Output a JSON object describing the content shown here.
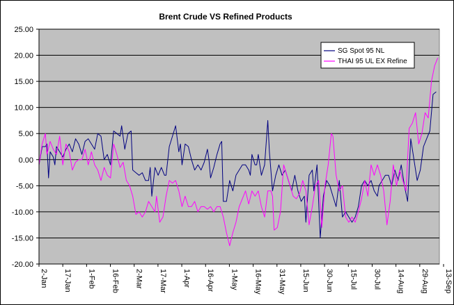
{
  "chart_data": {
    "type": "line",
    "title": "Brent Crude VS Refined Products",
    "xlabel": "",
    "ylabel": "",
    "ylim": [
      -20,
      25
    ],
    "y_ticks": [
      "25.00",
      "20.00",
      "15.00",
      "10.00",
      "5.00",
      "0.00",
      "-5.00",
      "-10.00",
      "-15.00",
      "-20.00"
    ],
    "x_tick_labels": [
      "2-Jan",
      "17-Jan",
      "1-Feb",
      "16-Feb",
      "2-Mar",
      "17-Mar",
      "1-Apr",
      "16-Apr",
      "1-May",
      "16-May",
      "31-May",
      "15-Jun",
      "30-Jun",
      "15-Jul",
      "30-Jul",
      "14-Aug",
      "29-Aug",
      "13-Sep"
    ],
    "grid": "horizontal",
    "plot_background": "#C0C0C0",
    "legend_position": "top-right",
    "series": [
      {
        "name": "SG Spot 95 NL",
        "color": "#000080",
        "points": [
          [
            0,
            -1
          ],
          [
            2,
            2.5
          ],
          [
            4,
            2.5
          ],
          [
            5,
            3
          ],
          [
            6,
            -3.5
          ],
          [
            7,
            1.5
          ],
          [
            9,
            0.5
          ],
          [
            10,
            -1
          ],
          [
            11,
            2.5
          ],
          [
            13,
            1.5
          ],
          [
            15,
            0.5
          ],
          [
            17,
            2
          ],
          [
            19,
            3
          ],
          [
            21,
            1.5
          ],
          [
            23,
            4
          ],
          [
            25,
            3
          ],
          [
            27,
            1
          ],
          [
            29,
            3.5
          ],
          [
            31,
            4
          ],
          [
            33,
            3
          ],
          [
            35,
            2
          ],
          [
            37,
            5
          ],
          [
            39,
            4.5
          ],
          [
            41,
            0
          ],
          [
            43,
            1
          ],
          [
            45,
            -1
          ],
          [
            47,
            5.5
          ],
          [
            49,
            5
          ],
          [
            51,
            4.5
          ],
          [
            52,
            6.5
          ],
          [
            54,
            2
          ],
          [
            56,
            5
          ],
          [
            58,
            5.5
          ],
          [
            59,
            -2
          ],
          [
            61,
            -2.5
          ],
          [
            63,
            -3
          ],
          [
            65,
            -2.5
          ],
          [
            67,
            -4
          ],
          [
            69,
            -4
          ],
          [
            70,
            -1.5
          ],
          [
            71,
            -7
          ],
          [
            73,
            -1.5
          ],
          [
            75,
            -3
          ],
          [
            77,
            -1.5
          ],
          [
            79,
            -3
          ],
          [
            80,
            -3
          ],
          [
            82,
            2.5
          ],
          [
            84,
            4.5
          ],
          [
            86,
            6.5
          ],
          [
            88,
            1.5
          ],
          [
            89,
            3
          ],
          [
            90,
            -1
          ],
          [
            92,
            3
          ],
          [
            94,
            2.5
          ],
          [
            96,
            0
          ],
          [
            98,
            -2
          ],
          [
            100,
            -1
          ],
          [
            101,
            -1.5
          ],
          [
            102,
            -2
          ],
          [
            104,
            -0.5
          ],
          [
            106,
            2
          ],
          [
            107,
            0
          ],
          [
            108,
            -3.5
          ],
          [
            110,
            -1.5
          ],
          [
            112,
            1
          ],
          [
            114,
            3
          ],
          [
            115,
            3.5
          ],
          [
            116,
            -8
          ],
          [
            118,
            -8
          ],
          [
            120,
            -4
          ],
          [
            122,
            -6
          ],
          [
            124,
            -3
          ],
          [
            126,
            -2
          ],
          [
            128,
            -1
          ],
          [
            130,
            -1
          ],
          [
            132,
            -2
          ],
          [
            133,
            -3
          ],
          [
            134,
            1
          ],
          [
            136,
            -1
          ],
          [
            137,
            -1
          ],
          [
            138,
            1
          ],
          [
            140,
            -3
          ],
          [
            142,
            -1
          ],
          [
            144,
            7.5
          ],
          [
            145,
            1.5
          ],
          [
            147,
            -6
          ],
          [
            149,
            -3
          ],
          [
            151,
            -1
          ],
          [
            153,
            -3
          ],
          [
            155,
            -2
          ],
          [
            157,
            -4
          ],
          [
            159,
            -6
          ],
          [
            161,
            -3
          ],
          [
            163,
            -6
          ],
          [
            165,
            -8
          ],
          [
            167,
            -7
          ],
          [
            168,
            -12
          ],
          [
            170,
            -3
          ],
          [
            172,
            -2
          ],
          [
            173,
            -6
          ],
          [
            175,
            -1
          ],
          [
            177,
            -15
          ],
          [
            179,
            -7
          ],
          [
            181,
            -4
          ],
          [
            183,
            -5
          ],
          [
            185,
            -7
          ],
          [
            187,
            -9
          ],
          [
            189,
            -4
          ],
          [
            191,
            -11
          ],
          [
            193,
            -10
          ],
          [
            195,
            -11
          ],
          [
            197,
            -12
          ],
          [
            199,
            -11
          ],
          [
            201,
            -9
          ],
          [
            203,
            -5
          ],
          [
            205,
            -4
          ],
          [
            207,
            -5
          ],
          [
            209,
            -4
          ],
          [
            211,
            -6
          ],
          [
            213,
            -7
          ],
          [
            214,
            -5
          ],
          [
            216,
            -4
          ],
          [
            218,
            -3
          ],
          [
            220,
            -3
          ],
          [
            222,
            -5
          ],
          [
            224,
            -2
          ],
          [
            226,
            -4
          ],
          [
            228,
            -1
          ],
          [
            230,
            -5
          ],
          [
            232,
            -8
          ],
          [
            234,
            4
          ],
          [
            236,
            0
          ],
          [
            238,
            -4
          ],
          [
            240,
            -2
          ],
          [
            242,
            2.5
          ],
          [
            244,
            4
          ],
          [
            246,
            5.5
          ],
          [
            248,
            12.5
          ],
          [
            250,
            13
          ]
        ]
      },
      {
        "name": "THAI 95 UL EX Refine",
        "color": "#FF00FF",
        "points": [
          [
            0,
            -1
          ],
          [
            2,
            3
          ],
          [
            4,
            5
          ],
          [
            5,
            1
          ],
          [
            7,
            3.5
          ],
          [
            9,
            2
          ],
          [
            11,
            1
          ],
          [
            13,
            4.5
          ],
          [
            15,
            -1
          ],
          [
            17,
            3
          ],
          [
            19,
            1.5
          ],
          [
            21,
            -2
          ],
          [
            23,
            -0.5
          ],
          [
            25,
            0
          ],
          [
            27,
            0
          ],
          [
            29,
            2
          ],
          [
            31,
            -1
          ],
          [
            33,
            1.5
          ],
          [
            35,
            -1
          ],
          [
            37,
            -2
          ],
          [
            39,
            -4
          ],
          [
            41,
            -1.5
          ],
          [
            43,
            -3
          ],
          [
            45,
            -3.5
          ],
          [
            47,
            3
          ],
          [
            49,
            1
          ],
          [
            51,
            -1.5
          ],
          [
            53,
            -0.5
          ],
          [
            55,
            -4
          ],
          [
            57,
            -5
          ],
          [
            59,
            -7
          ],
          [
            61,
            -10.5
          ],
          [
            63,
            -10
          ],
          [
            65,
            -11
          ],
          [
            67,
            -10
          ],
          [
            69,
            -8
          ],
          [
            71,
            -9
          ],
          [
            73,
            -10
          ],
          [
            74,
            -7
          ],
          [
            76,
            -12
          ],
          [
            78,
            -11
          ],
          [
            80,
            -7
          ],
          [
            82,
            -4
          ],
          [
            84,
            -4.5
          ],
          [
            86,
            -4
          ],
          [
            88,
            -6
          ],
          [
            90,
            -9
          ],
          [
            92,
            -7
          ],
          [
            94,
            -9
          ],
          [
            96,
            -9
          ],
          [
            98,
            -8
          ],
          [
            100,
            -10
          ],
          [
            102,
            -9
          ],
          [
            104,
            -9
          ],
          [
            106,
            -9.5
          ],
          [
            108,
            -9
          ],
          [
            110,
            -10
          ],
          [
            112,
            -9
          ],
          [
            114,
            -9
          ],
          [
            116,
            -11
          ],
          [
            118,
            -14
          ],
          [
            120,
            -16.5
          ],
          [
            122,
            -14
          ],
          [
            124,
            -12
          ],
          [
            126,
            -9
          ],
          [
            128,
            -7.5
          ],
          [
            130,
            -6
          ],
          [
            132,
            -8.5
          ],
          [
            134,
            -6
          ],
          [
            136,
            -7
          ],
          [
            138,
            -6
          ],
          [
            140,
            -9
          ],
          [
            142,
            -11
          ],
          [
            144,
            -6
          ],
          [
            146,
            -6
          ],
          [
            147,
            -7
          ],
          [
            148,
            -13.5
          ],
          [
            150,
            -13
          ],
          [
            152,
            -10
          ],
          [
            154,
            -1
          ],
          [
            156,
            -3
          ],
          [
            158,
            -5
          ],
          [
            160,
            -7
          ],
          [
            162,
            -7.5
          ],
          [
            164,
            -6.5
          ],
          [
            166,
            -4
          ],
          [
            168,
            -6
          ],
          [
            170,
            -12.5
          ],
          [
            172,
            -9
          ],
          [
            174,
            -5
          ],
          [
            176,
            -4
          ],
          [
            178,
            -13
          ],
          [
            180,
            -5
          ],
          [
            182,
            -1
          ],
          [
            184,
            5
          ],
          [
            185,
            4.5
          ],
          [
            187,
            -3
          ],
          [
            189,
            -6
          ],
          [
            191,
            -5
          ],
          [
            193,
            -11
          ],
          [
            195,
            -12
          ],
          [
            197,
            -11
          ],
          [
            199,
            -12
          ],
          [
            201,
            -10
          ],
          [
            203,
            -7.5
          ],
          [
            205,
            -4
          ],
          [
            207,
            -7
          ],
          [
            209,
            -1
          ],
          [
            211,
            -3
          ],
          [
            213,
            -1
          ],
          [
            215,
            -3
          ],
          [
            217,
            -6
          ],
          [
            219,
            -12.5
          ],
          [
            221,
            -8
          ],
          [
            223,
            -1
          ],
          [
            225,
            -5
          ],
          [
            227,
            -2
          ],
          [
            229,
            -4
          ],
          [
            231,
            -6
          ],
          [
            233,
            6
          ],
          [
            235,
            7
          ],
          [
            237,
            9
          ],
          [
            239,
            3
          ],
          [
            241,
            5
          ],
          [
            243,
            9
          ],
          [
            245,
            8
          ],
          [
            247,
            15
          ],
          [
            249,
            18
          ],
          [
            251,
            19.5
          ]
        ]
      }
    ]
  }
}
